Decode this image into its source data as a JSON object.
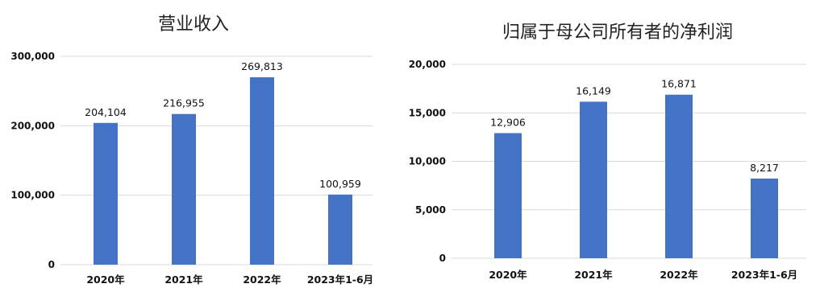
{
  "chart_data": [
    {
      "type": "bar",
      "title": "营业收入",
      "categories": [
        "2020年",
        "2021年",
        "2022年",
        "2023年1-6月"
      ],
      "values": [
        204104,
        216955,
        269813,
        100959
      ],
      "data_labels": [
        "204,104",
        "216,955",
        "269,813",
        "100,959"
      ],
      "yticks": [
        "0",
        "100,000",
        "200,000",
        "300,000"
      ],
      "ylim": [
        0,
        300000
      ],
      "grid": true,
      "bar_color": "#4472C4"
    },
    {
      "type": "bar",
      "title": "归属于母公司所有者的净利润",
      "categories": [
        "2020年",
        "2021年",
        "2022年",
        "2023年1-6月"
      ],
      "values": [
        12906,
        16149,
        16871,
        8217
      ],
      "data_labels": [
        "12,906",
        "16,149",
        "16,871",
        "8,217"
      ],
      "yticks": [
        "0",
        "5,000",
        "10,000",
        "15,000",
        "20,000"
      ],
      "ylim": [
        0,
        20000
      ],
      "grid": true,
      "bar_color": "#4472C4"
    }
  ]
}
